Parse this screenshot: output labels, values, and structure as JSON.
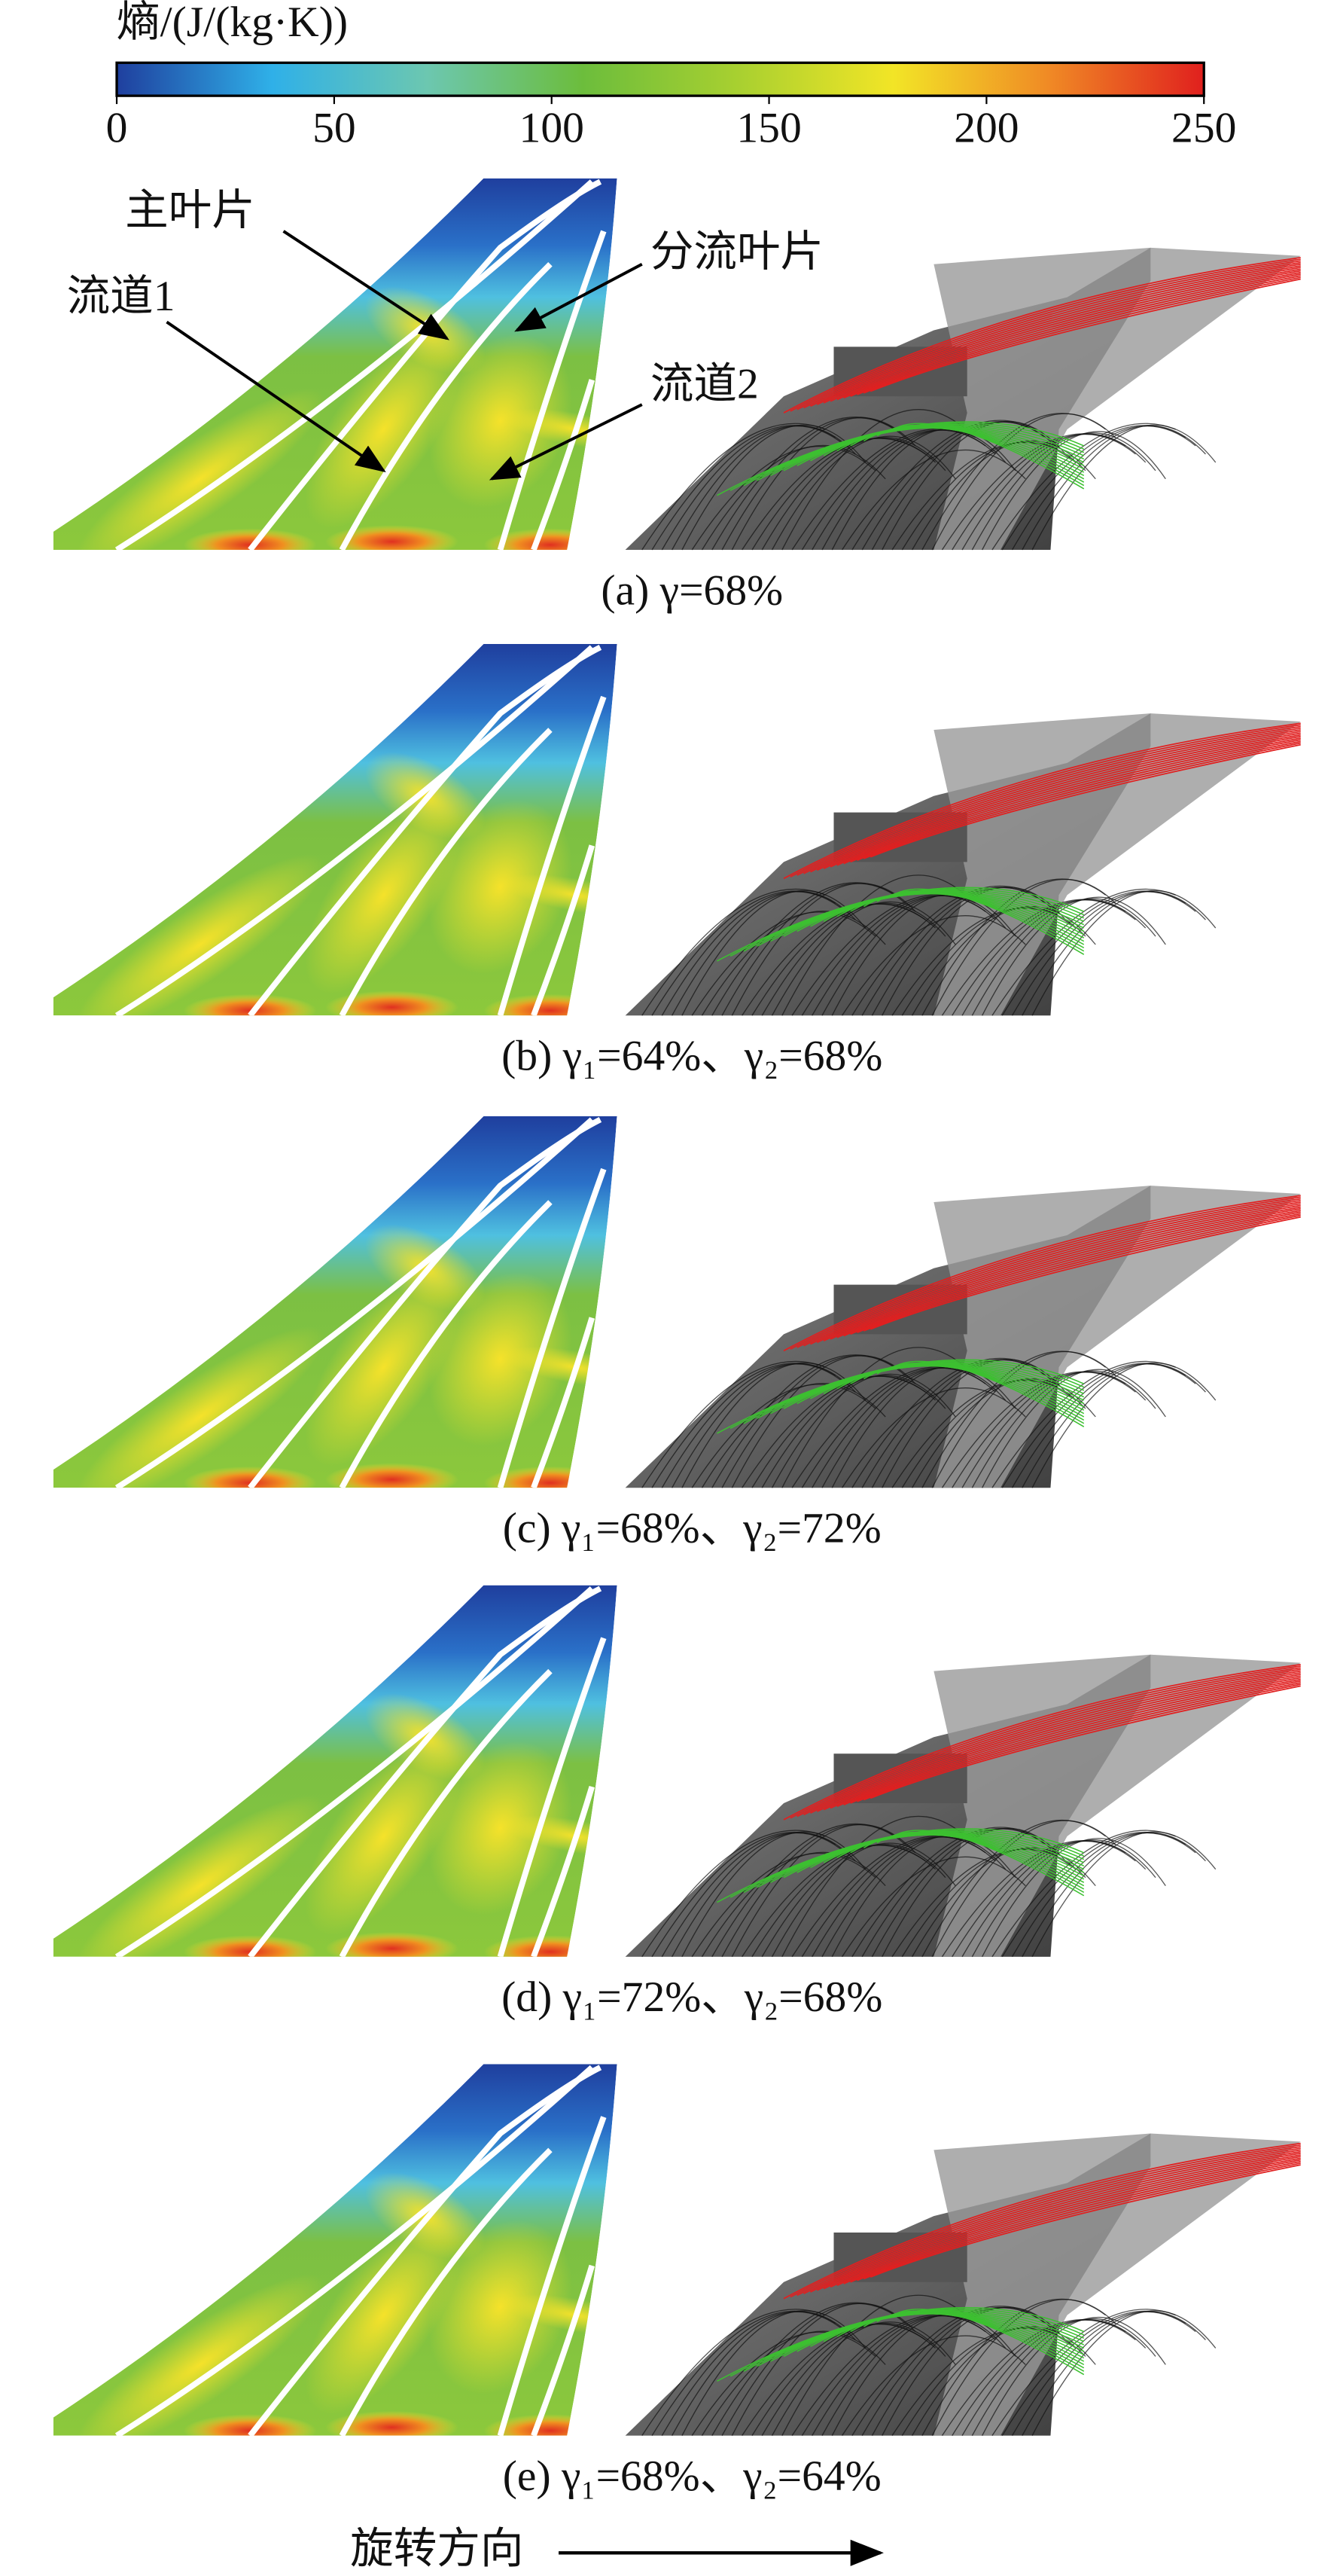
{
  "colorbar": {
    "title": "熵/(J/(kg·K))",
    "lim": [
      0,
      250
    ],
    "ticks": [
      0,
      50,
      100,
      150,
      200,
      250
    ],
    "colors": [
      "#1f3f9e",
      "#2fb0e8",
      "#6cc7b0",
      "#6cbd3c",
      "#a8d030",
      "#f2e526",
      "#f08a25",
      "#e0201e"
    ]
  },
  "annotations": [
    "主叶片",
    "分流叶片",
    "流道1",
    "流道2"
  ],
  "captions": [
    "(a) γ=68%",
    "(b) γ₁=64%、γ₂=68%",
    "(c) γ₁=68%、γ₂=72%",
    "(d) γ₁=72%、γ₂=68%",
    "(e) γ₁=68%、γ₂=64%"
  ],
  "footer": "旋转方向"
}
